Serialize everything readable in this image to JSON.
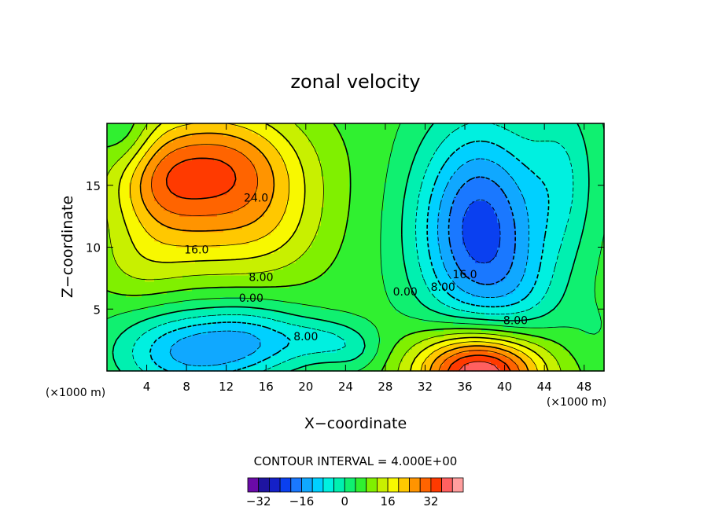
{
  "chart_data": {
    "type": "heatmap",
    "title": "zonal velocity",
    "xlabel": "X−coordinate",
    "ylabel": "Z−coordinate",
    "x_unit_left": "(×1000 m)",
    "x_unit_right": "(×1000 m)",
    "xlim": [
      0,
      50
    ],
    "ylim": [
      0,
      20
    ],
    "x_ticks": [
      4,
      8,
      12,
      16,
      20,
      24,
      28,
      32,
      36,
      40,
      44,
      48
    ],
    "y_ticks": [
      5,
      10,
      15
    ],
    "contour_interval_text": "CONTOUR INTERVAL = 4.000E+00",
    "contour_interval": 4,
    "colorbar": {
      "levels": [
        -36,
        -32,
        -28,
        -24,
        -20,
        -16,
        -12,
        -8,
        -4,
        0,
        4,
        8,
        12,
        16,
        20,
        24,
        28,
        32,
        36,
        40
      ],
      "tick_values": [
        -32,
        -16,
        0,
        16,
        32
      ],
      "tick_labels": [
        "−32",
        "−16",
        "0",
        "16",
        "32"
      ],
      "colors": [
        "#6a0aa8",
        "#1e14a0",
        "#1420c8",
        "#0a40f0",
        "#1a78ff",
        "#10a8ff",
        "#00d0ff",
        "#00f0e0",
        "#00f0b0",
        "#10f070",
        "#30f030",
        "#80f000",
        "#c8f000",
        "#f8f800",
        "#ffc800",
        "#ff9400",
        "#ff6400",
        "#ff3a00",
        "#ff6060",
        "#ff9e9e"
      ]
    },
    "contour_labels": [
      {
        "text": "24.0",
        "x": 15,
        "y": 14
      },
      {
        "text": "16.0",
        "x": 9,
        "y": 9.8
      },
      {
        "text": "8.00",
        "x": 15.5,
        "y": 7.6
      },
      {
        "text": "0.00",
        "x": 14.5,
        "y": 5.9
      },
      {
        "text": "8.00",
        "x": 20,
        "y": 2.8
      },
      {
        "text": "0.00",
        "x": 30,
        "y": 6.4
      },
      {
        "text": "8.00",
        "x": 33.8,
        "y": 6.8
      },
      {
        "text": "16.0",
        "x": 36,
        "y": 7.8
      },
      {
        "text": "8.00",
        "x": 41.1,
        "y": 4.1
      }
    ],
    "features": [
      {
        "x": 11,
        "y": 16,
        "value": 26,
        "sx": 6,
        "sy": 3.6
      },
      {
        "x": 5,
        "y": 15,
        "value": 8,
        "sx": 3,
        "sy": 3
      },
      {
        "x": 8,
        "y": 10,
        "value": 6,
        "sx": 6,
        "sy": 2.5
      },
      {
        "x": 3,
        "y": 8,
        "value": 3,
        "sx": 3,
        "sy": 2
      },
      {
        "x": 17,
        "y": 11,
        "value": 5,
        "sx": 4,
        "sy": 3
      },
      {
        "x": 8,
        "y": 1.5,
        "value": -18,
        "sx": 5,
        "sy": 2.3
      },
      {
        "x": 15,
        "y": 2.5,
        "value": -12,
        "sx": 4,
        "sy": 2
      },
      {
        "x": 22,
        "y": 2.5,
        "value": -8,
        "sx": 3,
        "sy": 1.3
      },
      {
        "x": 25,
        "y": 1.5,
        "value": -4,
        "sx": 2,
        "sy": 1.2
      },
      {
        "x": 37.5,
        "y": 11.5,
        "value": -28,
        "sx": 4.5,
        "sy": 6
      },
      {
        "x": 42,
        "y": 6,
        "value": -4,
        "sx": 3,
        "sy": 3
      },
      {
        "x": 37.5,
        "y": 0,
        "value": 38,
        "sx": 4.5,
        "sy": 2.4
      },
      {
        "x": 46,
        "y": 16,
        "value": -8,
        "sx": 2.5,
        "sy": 5
      },
      {
        "x": 2,
        "y": 19,
        "value": -6,
        "sx": 2,
        "sy": 2
      },
      {
        "x": 49,
        "y": 3,
        "value": -2,
        "sx": 2,
        "sy": 2
      }
    ],
    "background_value": 6
  }
}
